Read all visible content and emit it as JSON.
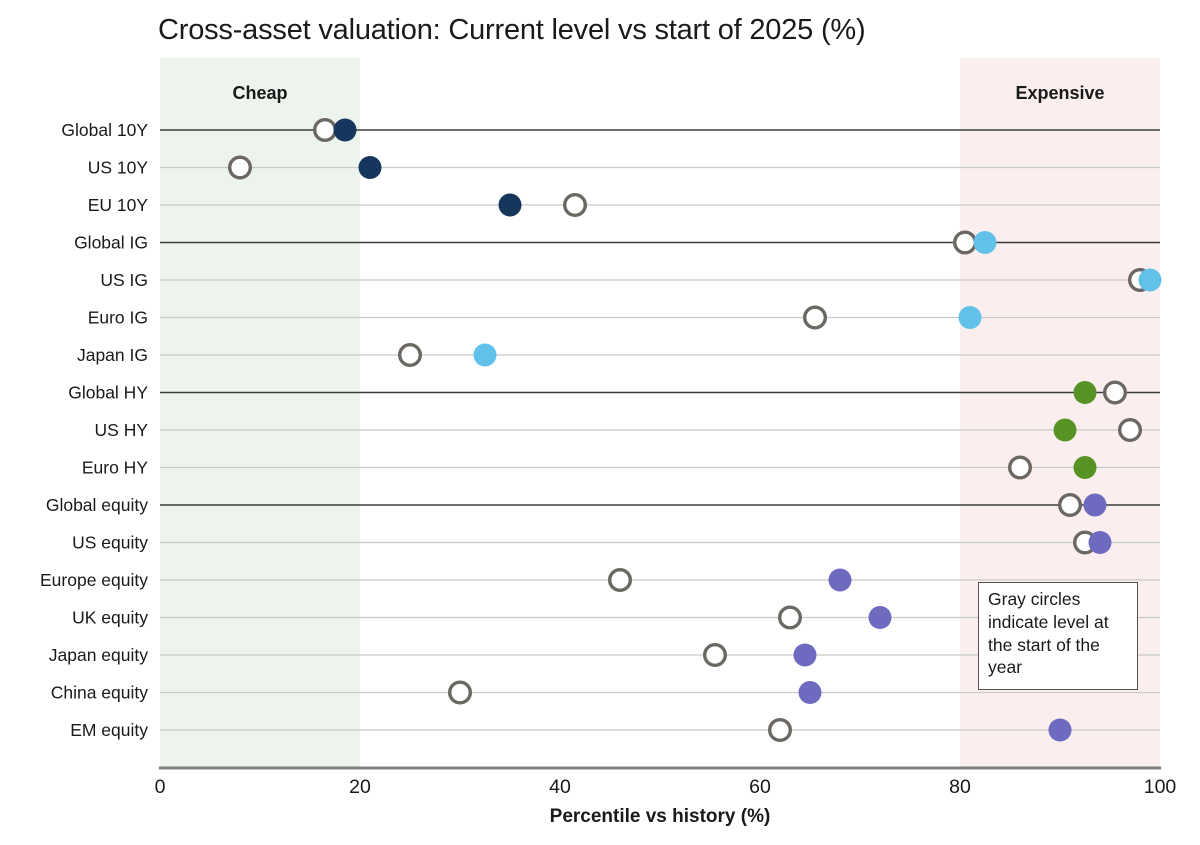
{
  "title": "Cross-asset valuation: Current level vs start of 2025 (%)",
  "chart_data": {
    "type": "scatter",
    "title": "Cross-asset valuation: Current level vs start of 2025 (%)",
    "xlabel": "Percentile vs history (%)",
    "xlim": [
      0,
      100
    ],
    "xticks": [
      0,
      20,
      40,
      60,
      80,
      100
    ],
    "grid": "horizontal",
    "legend_position": "none",
    "annotation": "Gray circles indicate level at the start of the year",
    "regions": [
      {
        "label": "Cheap",
        "from": 0,
        "to": 20,
        "color": "#edf4ed"
      },
      {
        "label": "Expensive",
        "from": 80,
        "to": 100,
        "color": "#faeeee"
      }
    ],
    "start_marker": {
      "label": "Level at start of year",
      "style": "open-circle",
      "color": "#6b6762"
    },
    "current_marker": {
      "label": "Current level",
      "style": "filled-circle"
    },
    "group_colors": {
      "rates": "#17365d",
      "ig": "#62c1e9",
      "hy": "#579324",
      "equity": "#6e6ac0"
    },
    "separator_rows": [
      "Global 10Y",
      "Global IG",
      "Global HY",
      "Global equity"
    ],
    "rows": [
      {
        "label": "Global 10Y",
        "start": 16.5,
        "current": 18.5,
        "group": "rates"
      },
      {
        "label": "US 10Y",
        "start": 8,
        "current": 21,
        "group": "rates"
      },
      {
        "label": "EU 10Y",
        "start": 41.5,
        "current": 35,
        "group": "rates"
      },
      {
        "label": "Global IG",
        "start": 80.5,
        "current": 82.5,
        "group": "ig"
      },
      {
        "label": "US IG",
        "start": 98,
        "current": 99,
        "group": "ig"
      },
      {
        "label": "Euro IG",
        "start": 65.5,
        "current": 81,
        "group": "ig"
      },
      {
        "label": "Japan IG",
        "start": 25,
        "current": 32.5,
        "group": "ig"
      },
      {
        "label": "Global HY",
        "start": 95.5,
        "current": 92.5,
        "group": "hy"
      },
      {
        "label": "US HY",
        "start": 97,
        "current": 90.5,
        "group": "hy"
      },
      {
        "label": "Euro HY",
        "start": 86,
        "current": 92.5,
        "group": "hy"
      },
      {
        "label": "Global equity",
        "start": 91,
        "current": 93.5,
        "group": "equity"
      },
      {
        "label": "US equity",
        "start": 92.5,
        "current": 94,
        "group": "equity"
      },
      {
        "label": "Europe equity",
        "start": 46,
        "current": 68,
        "group": "equity"
      },
      {
        "label": "UK equity",
        "start": 63,
        "current": 72,
        "group": "equity"
      },
      {
        "label": "Japan equity",
        "start": 55.5,
        "current": 64.5,
        "group": "equity"
      },
      {
        "label": "China equity",
        "start": 30,
        "current": 65,
        "group": "equity"
      },
      {
        "label": "EM equity",
        "start": 62,
        "current": 90,
        "group": "equity"
      }
    ]
  }
}
